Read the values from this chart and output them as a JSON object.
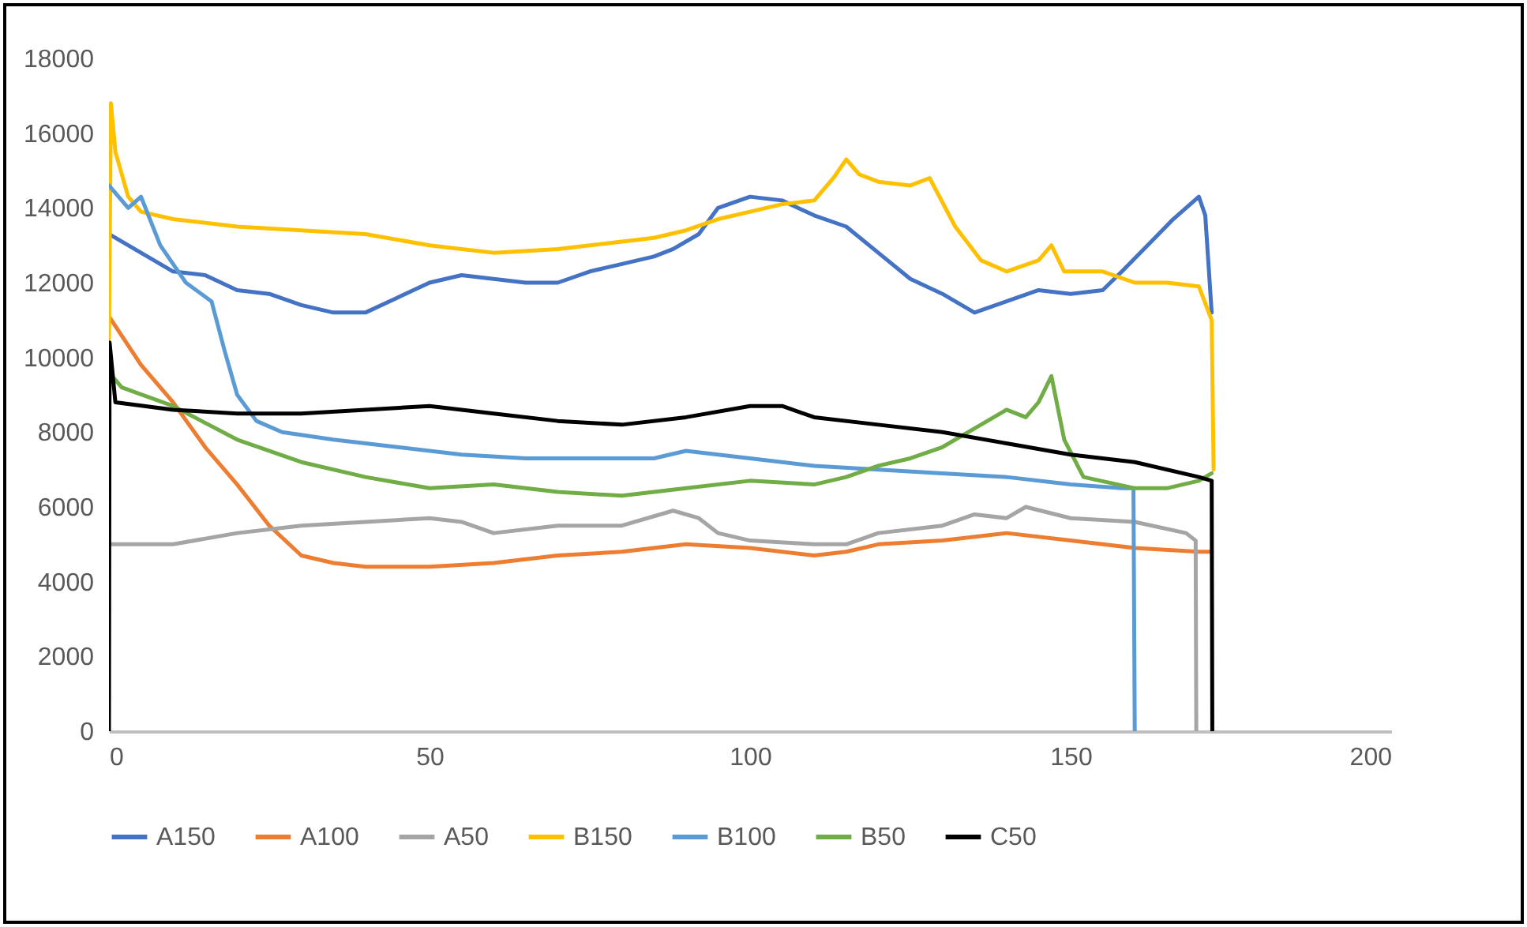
{
  "chart_data": {
    "type": "line",
    "xlim": [
      0,
      200
    ],
    "xticks": [
      0,
      50,
      100,
      150,
      200
    ],
    "ylim": [
      0,
      18000
    ],
    "yticks": [
      0,
      2000,
      4000,
      6000,
      8000,
      10000,
      12000,
      14000,
      16000,
      18000
    ],
    "grid": false,
    "legend": "bottom",
    "marker": "none",
    "line_style": "solid",
    "series": [
      {
        "name": "A150",
        "color": "#4472c4",
        "x": [
          0,
          5,
          10,
          15,
          20,
          25,
          30,
          35,
          40,
          45,
          50,
          55,
          60,
          65,
          70,
          75,
          80,
          85,
          88,
          92,
          95,
          100,
          105,
          110,
          115,
          120,
          125,
          130,
          135,
          140,
          145,
          150,
          155,
          158,
          162,
          166,
          170,
          171,
          172
        ],
        "values": [
          13300,
          12800,
          12300,
          12200,
          11800,
          11700,
          11400,
          11200,
          11200,
          11600,
          12000,
          12200,
          12100,
          12000,
          12000,
          12300,
          12500,
          12700,
          12900,
          13300,
          14000,
          14300,
          14200,
          13800,
          13500,
          12800,
          12100,
          11700,
          11200,
          11500,
          11800,
          11700,
          11800,
          12300,
          13000,
          13700,
          14300,
          13800,
          11200
        ]
      },
      {
        "name": "A100",
        "color": "#ed7d31",
        "x": [
          0,
          5,
          10,
          15,
          20,
          25,
          30,
          35,
          40,
          50,
          60,
          70,
          80,
          90,
          100,
          110,
          115,
          120,
          130,
          140,
          150,
          160,
          170,
          172
        ],
        "values": [
          11100,
          9800,
          8800,
          7600,
          6600,
          5500,
          4700,
          4500,
          4400,
          4400,
          4500,
          4700,
          4800,
          5000,
          4900,
          4700,
          4800,
          5000,
          5100,
          5300,
          5100,
          4900,
          4800,
          4800
        ]
      },
      {
        "name": "A50",
        "color": "#a5a5a5",
        "x": [
          0,
          10,
          20,
          30,
          40,
          50,
          55,
          60,
          70,
          80,
          88,
          92,
          95,
          100,
          110,
          115,
          120,
          130,
          135,
          140,
          143,
          150,
          160,
          168,
          169.5,
          169.6
        ],
        "values": [
          5000,
          5000,
          5300,
          5500,
          5600,
          5700,
          5600,
          5300,
          5500,
          5500,
          5900,
          5700,
          5300,
          5100,
          5000,
          5000,
          5300,
          5500,
          5800,
          5700,
          6000,
          5700,
          5600,
          5300,
          5100,
          0
        ]
      },
      {
        "name": "B150",
        "color": "#ffc000",
        "x": [
          0,
          0.3,
          1,
          3,
          5,
          10,
          20,
          30,
          40,
          50,
          60,
          70,
          80,
          85,
          90,
          95,
          100,
          105,
          110,
          113,
          115,
          117,
          120,
          125,
          128,
          132,
          136,
          140,
          145,
          147,
          149,
          155,
          160,
          165,
          170,
          172,
          172.3
        ],
        "values": [
          10500,
          16800,
          15500,
          14300,
          13900,
          13700,
          13500,
          13400,
          13300,
          13000,
          12800,
          12900,
          13100,
          13200,
          13400,
          13700,
          13900,
          14100,
          14200,
          14800,
          15300,
          14900,
          14700,
          14600,
          14800,
          13500,
          12600,
          12300,
          12600,
          13000,
          12300,
          12300,
          12000,
          12000,
          11900,
          11000,
          7000
        ]
      },
      {
        "name": "B100",
        "color": "#5b9bd5",
        "x": [
          0,
          3,
          5,
          8,
          12,
          16,
          18,
          20,
          23,
          27,
          35,
          45,
          55,
          65,
          75,
          85,
          90,
          100,
          110,
          120,
          130,
          140,
          150,
          158,
          159.8,
          160
        ],
        "values": [
          14600,
          14000,
          14300,
          13000,
          12000,
          11500,
          10200,
          9000,
          8300,
          8000,
          7800,
          7600,
          7400,
          7300,
          7300,
          7300,
          7500,
          7300,
          7100,
          7000,
          6900,
          6800,
          6600,
          6500,
          6500,
          0
        ]
      },
      {
        "name": "B50",
        "color": "#70ad47",
        "x": [
          0,
          2,
          10,
          20,
          30,
          40,
          50,
          60,
          70,
          80,
          90,
          100,
          110,
          115,
          120,
          125,
          130,
          135,
          140,
          143,
          145,
          147,
          149,
          152,
          160,
          165,
          170,
          172
        ],
        "values": [
          9600,
          9200,
          8700,
          7800,
          7200,
          6800,
          6500,
          6600,
          6400,
          6300,
          6500,
          6700,
          6600,
          6800,
          7100,
          7300,
          7600,
          8100,
          8600,
          8400,
          8800,
          9500,
          7800,
          6800,
          6500,
          6500,
          6700,
          6900
        ]
      },
      {
        "name": "C50",
        "color": "#000000",
        "x": [
          0,
          0.1,
          1,
          10,
          20,
          30,
          40,
          50,
          60,
          70,
          80,
          90,
          100,
          105,
          110,
          120,
          130,
          140,
          150,
          160,
          170,
          172,
          172.1
        ],
        "values": [
          0,
          10400,
          8800,
          8600,
          8500,
          8500,
          8600,
          8700,
          8500,
          8300,
          8200,
          8400,
          8700,
          8700,
          8400,
          8200,
          8000,
          7700,
          7400,
          7200,
          6800,
          6700,
          0
        ]
      }
    ]
  }
}
